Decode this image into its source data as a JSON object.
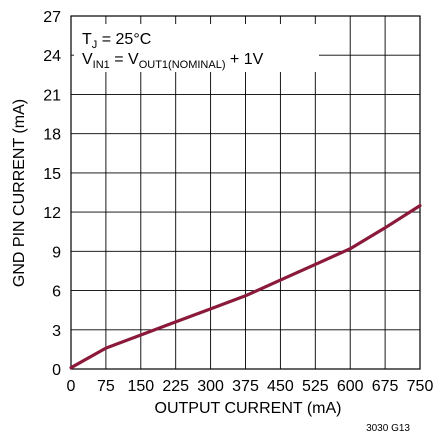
{
  "chart_data": {
    "type": "line",
    "xlabel": "OUTPUT CURRENT (mA)",
    "ylabel": "GND PIN CURRENT (mA)",
    "xlim": [
      0,
      750
    ],
    "ylim": [
      0,
      27
    ],
    "x_ticks": [
      "0",
      "75",
      "150",
      "225",
      "300",
      "375",
      "450",
      "525",
      "600",
      "675",
      "750"
    ],
    "y_ticks": [
      "0",
      "3",
      "6",
      "9",
      "12",
      "15",
      "18",
      "21",
      "24",
      "27"
    ],
    "grid": true,
    "annotation": {
      "line1_main": "T",
      "line1_sub": "J",
      "line1_rest": " = 25°C",
      "line2_main": "V",
      "line2_sub": "IN1",
      "line2_mid": " = V",
      "line2_sub2": "OUT1(NOMINAL)",
      "line2_rest": " + 1V"
    },
    "series": [
      {
        "color": "#8b1a3a",
        "x": [
          0,
          75,
          150,
          225,
          300,
          375,
          450,
          525,
          600,
          675,
          750
        ],
        "y": [
          0.1,
          1.6,
          2.6,
          3.6,
          4.6,
          5.6,
          6.8,
          8.0,
          9.2,
          10.8,
          12.5
        ]
      }
    ],
    "figure_code": "3030 G13"
  }
}
